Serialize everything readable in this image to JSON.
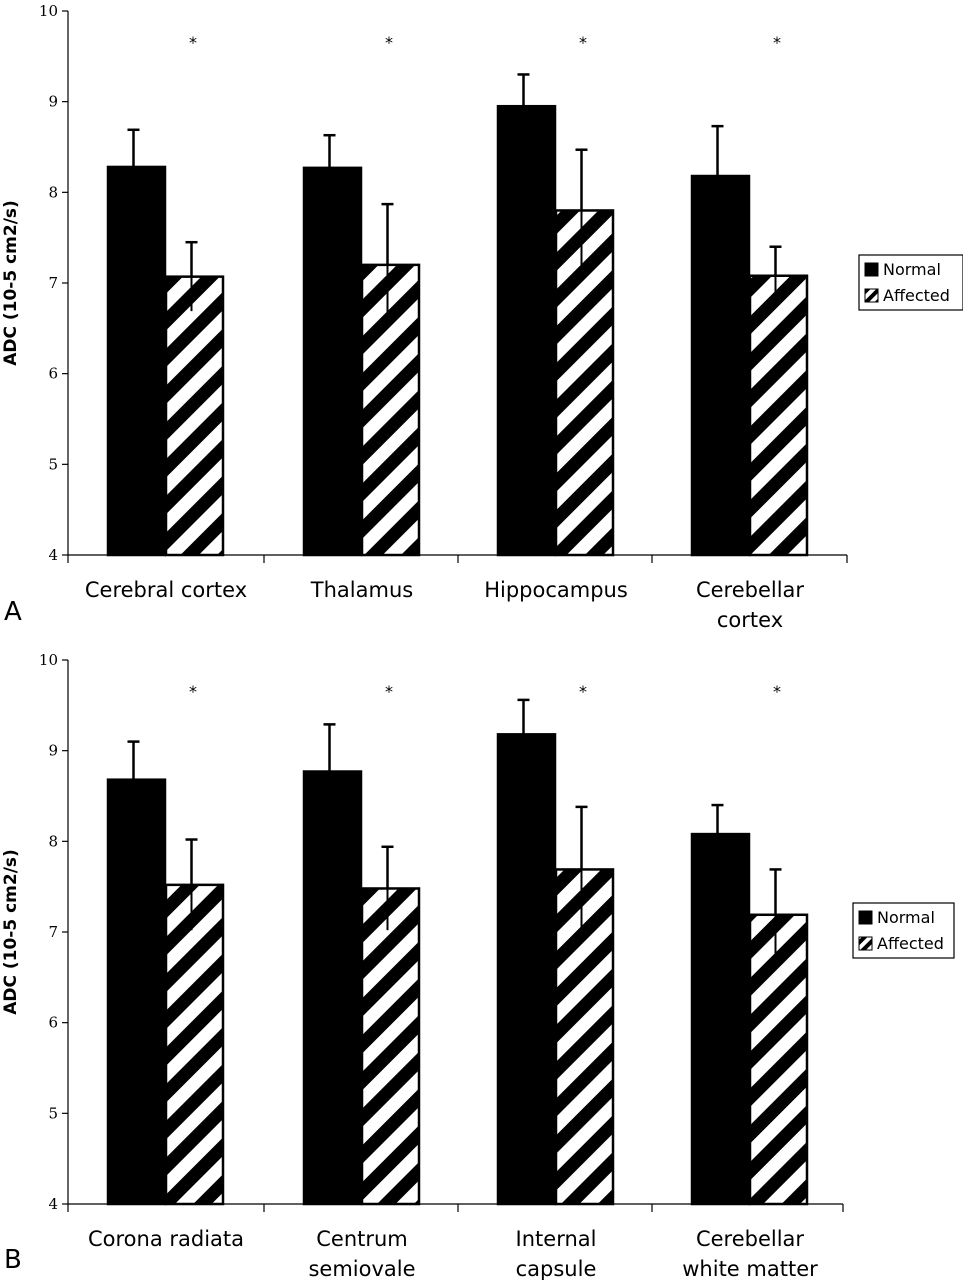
{
  "chart_data": [
    {
      "type": "bar",
      "panel_label": "A",
      "ylabel": "ADC (10-5 cm2/s)",
      "ylim": [
        4,
        10
      ],
      "yticks": [
        "4",
        "5",
        "6",
        "7",
        "8",
        "9",
        "10"
      ],
      "categories": [
        [
          "Cerebral cortex"
        ],
        [
          "Thalamus"
        ],
        [
          "Hippocampus"
        ],
        [
          "Cerebellar",
          "cortex"
        ]
      ],
      "series": [
        {
          "name": "Normal",
          "values": [
            8.28,
            8.27,
            8.95,
            8.18
          ],
          "errors": [
            0.41,
            0.36,
            0.35,
            0.55
          ]
        },
        {
          "name": "Affected",
          "values": [
            7.07,
            7.2,
            7.8,
            7.08
          ],
          "errors": [
            0.38,
            0.67,
            0.67,
            0.32
          ]
        }
      ],
      "significance": [
        "*",
        "*",
        "*",
        "*"
      ],
      "legend": [
        "Normal",
        "Affected"
      ],
      "legend_position": "right",
      "grid": false
    },
    {
      "type": "bar",
      "panel_label": "B",
      "ylabel": "ADC (10-5 cm2/s)",
      "ylim": [
        4,
        10
      ],
      "yticks": [
        "4",
        "5",
        "6",
        "7",
        "8",
        "9",
        "10"
      ],
      "categories": [
        [
          "Corona radiata"
        ],
        [
          "Centrum",
          "semiovale"
        ],
        [
          "Internal",
          "capsule"
        ],
        [
          "Cerebellar",
          "white matter"
        ]
      ],
      "series": [
        {
          "name": "Normal",
          "values": [
            8.68,
            8.77,
            9.18,
            8.08
          ],
          "errors": [
            0.42,
            0.52,
            0.38,
            0.32
          ]
        },
        {
          "name": "Affected",
          "values": [
            7.52,
            7.48,
            7.69,
            7.19
          ],
          "errors": [
            0.5,
            0.46,
            0.69,
            0.5
          ]
        }
      ],
      "significance": [
        "*",
        "*",
        "*",
        "*"
      ],
      "legend": [
        "Normal",
        "Affected"
      ],
      "legend_position": "right",
      "grid": false
    }
  ]
}
